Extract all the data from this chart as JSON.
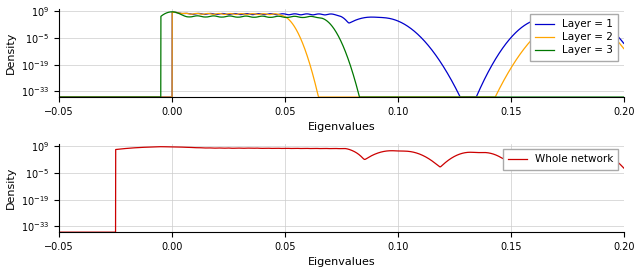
{
  "xlim": [
    -0.05,
    0.2
  ],
  "yticks": [
    1e-33,
    1e-19,
    1e-05,
    1000000000.0
  ],
  "xlabel": "Eigenvalues",
  "ylabel": "Density",
  "colors": {
    "layer1": "#0000cc",
    "layer2": "#FFA500",
    "layer3": "#007700",
    "whole": "#cc0000"
  },
  "legend1": [
    "Layer = 1",
    "Layer = 2",
    "Layer = 3"
  ],
  "legend2": [
    "Whole network"
  ],
  "background": "#ffffff",
  "linewidth": 0.9
}
